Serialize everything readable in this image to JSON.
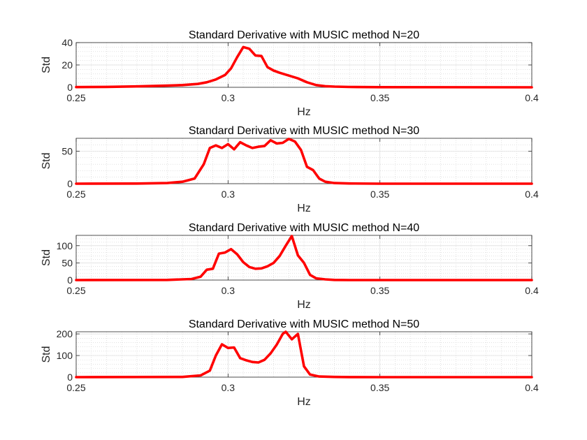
{
  "chart_data": [
    {
      "type": "line",
      "title": "Standard Derivative with MUSIC method N=20",
      "xlabel": "Hz",
      "ylabel": "Std",
      "xlim": [
        0.25,
        0.4
      ],
      "ylim": [
        0,
        40
      ],
      "xticks": [
        0.25,
        0.3,
        0.35,
        0.4
      ],
      "xtick_labels": [
        "0.25",
        "0.3",
        "0.35",
        "0.4"
      ],
      "yticks": [
        0,
        20,
        40
      ],
      "ytick_labels": [
        "0",
        "20",
        "40"
      ],
      "grid": "minor-dotted",
      "color": "#ff0000",
      "series": [
        {
          "x": [
            0.25,
            0.26,
            0.27,
            0.28,
            0.285,
            0.29,
            0.293,
            0.296,
            0.299,
            0.301,
            0.303,
            0.305,
            0.307,
            0.309,
            0.311,
            0.313,
            0.315,
            0.317,
            0.32,
            0.323,
            0.326,
            0.329,
            0.332,
            0.335,
            0.34,
            0.35,
            0.4
          ],
          "y": [
            0.2,
            0.4,
            0.8,
            1.5,
            2.0,
            3.0,
            4.5,
            7.0,
            11.0,
            17.0,
            27.0,
            36.0,
            34.5,
            28.5,
            28.0,
            18.0,
            15.0,
            13.0,
            10.5,
            8.0,
            4.5,
            2.0,
            1.0,
            0.6,
            0.3,
            0.1,
            0.0
          ]
        }
      ]
    },
    {
      "type": "line",
      "title": "Standard Derivative with MUSIC method N=30",
      "xlabel": "Hz",
      "ylabel": "Std",
      "xlim": [
        0.25,
        0.4
      ],
      "ylim": [
        0,
        70
      ],
      "xticks": [
        0.25,
        0.3,
        0.35,
        0.4
      ],
      "xtick_labels": [
        "0.25",
        "0.3",
        "0.35",
        "0.4"
      ],
      "yticks": [
        0,
        50
      ],
      "ytick_labels": [
        "0",
        "50"
      ],
      "grid": "minor-dotted",
      "color": "#ff0000",
      "series": [
        {
          "x": [
            0.25,
            0.27,
            0.28,
            0.285,
            0.289,
            0.292,
            0.294,
            0.296,
            0.298,
            0.3,
            0.302,
            0.304,
            0.306,
            0.308,
            0.31,
            0.312,
            0.314,
            0.316,
            0.318,
            0.32,
            0.322,
            0.324,
            0.326,
            0.328,
            0.33,
            0.332,
            0.335,
            0.34,
            0.35,
            0.4
          ],
          "y": [
            0,
            0.2,
            1.0,
            3.0,
            8.0,
            30.0,
            55.0,
            59.0,
            55.0,
            61.0,
            53.0,
            64.0,
            59.0,
            55.0,
            57.0,
            58.0,
            67.0,
            62.0,
            63.0,
            69.0,
            65.0,
            52.0,
            26.0,
            21.0,
            8.0,
            3.0,
            1.0,
            0.3,
            0.0,
            0.0
          ]
        }
      ]
    },
    {
      "type": "line",
      "title": "Standard Derivative with MUSIC method N=40",
      "xlabel": "Hz",
      "ylabel": "Std",
      "xlim": [
        0.25,
        0.4
      ],
      "ylim": [
        0,
        130
      ],
      "xticks": [
        0.25,
        0.3,
        0.35,
        0.4
      ],
      "xtick_labels": [
        "0.25",
        "0.3",
        "0.35",
        "0.4"
      ],
      "yticks": [
        0,
        50,
        100
      ],
      "ytick_labels": [
        "0",
        "50",
        "100"
      ],
      "grid": "minor-dotted",
      "color": "#ff0000",
      "series": [
        {
          "x": [
            0.25,
            0.28,
            0.288,
            0.291,
            0.293,
            0.295,
            0.297,
            0.299,
            0.301,
            0.303,
            0.305,
            0.307,
            0.309,
            0.311,
            0.313,
            0.315,
            0.317,
            0.319,
            0.321,
            0.323,
            0.325,
            0.327,
            0.329,
            0.332,
            0.335,
            0.34,
            0.35,
            0.4
          ],
          "y": [
            0,
            0.5,
            3.0,
            10.0,
            30.0,
            33.0,
            77.0,
            80.0,
            90.0,
            75.0,
            52.0,
            38.0,
            33.0,
            34.0,
            40.0,
            50.0,
            70.0,
            100.0,
            128.0,
            72.0,
            50.0,
            15.0,
            5.0,
            2.0,
            0.5,
            0.0,
            0.0,
            0.0
          ]
        }
      ]
    },
    {
      "type": "line",
      "title": "Standard Derivative with MUSIC method N=50",
      "xlabel": "Hz",
      "ylabel": "Std",
      "xlim": [
        0.25,
        0.4
      ],
      "ylim": [
        0,
        210
      ],
      "xticks": [
        0.25,
        0.3,
        0.35,
        0.4
      ],
      "xtick_labels": [
        "0.25",
        "0.3",
        "0.35",
        "0.4"
      ],
      "yticks": [
        0,
        100,
        200
      ],
      "ytick_labels": [
        "0",
        "100",
        "200"
      ],
      "grid": "minor-dotted",
      "color": "#ff0000",
      "series": [
        {
          "x": [
            0.25,
            0.285,
            0.291,
            0.294,
            0.296,
            0.298,
            0.3,
            0.302,
            0.304,
            0.306,
            0.308,
            0.31,
            0.312,
            0.314,
            0.316,
            0.318,
            0.319,
            0.321,
            0.323,
            0.325,
            0.327,
            0.33,
            0.335,
            0.34,
            0.35,
            0.4
          ],
          "y": [
            0,
            1.0,
            8.0,
            30.0,
            100.0,
            152.0,
            135.0,
            137.0,
            88.0,
            78.0,
            70.0,
            68.0,
            80.0,
            110.0,
            150.0,
            200.0,
            210.0,
            175.0,
            200.0,
            50.0,
            12.0,
            3.0,
            1.0,
            0.3,
            0.0,
            0.0
          ]
        }
      ]
    }
  ]
}
